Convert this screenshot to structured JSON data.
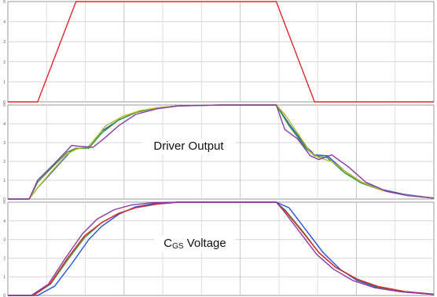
{
  "chart_data": [
    {
      "type": "line",
      "title": "",
      "xlabel": "",
      "ylabel": "",
      "ylim": [
        0,
        5
      ],
      "y_ticks": [
        "0",
        "1",
        "2",
        "3",
        "4",
        "5"
      ],
      "grid": true,
      "series": [
        {
          "color": "#e0262c",
          "points": [
            [
              0,
              0
            ],
            [
              0.7,
              0
            ],
            [
              1.6,
              5
            ],
            [
              6.3,
              5
            ],
            [
              7.2,
              0
            ],
            [
              10,
              0
            ]
          ]
        }
      ]
    },
    {
      "type": "line",
      "title": "Driver Output",
      "xlabel": "",
      "ylabel": "",
      "ylim": [
        0,
        5
      ],
      "y_ticks": [
        "0",
        "1",
        "2",
        "3",
        "4",
        "5"
      ],
      "grid": true,
      "series": [
        {
          "color": "#2a4fd6",
          "points": [
            [
              0,
              0
            ],
            [
              0.5,
              0
            ],
            [
              0.7,
              0.6
            ],
            [
              1.1,
              1.6
            ],
            [
              1.5,
              2.6
            ],
            [
              1.7,
              2.7
            ],
            [
              1.9,
              2.8
            ],
            [
              2.2,
              3.6
            ],
            [
              2.6,
              4.2
            ],
            [
              3.0,
              4.6
            ],
            [
              3.5,
              4.85
            ],
            [
              4.0,
              4.95
            ],
            [
              5,
              5
            ],
            [
              6.3,
              5
            ],
            [
              6.6,
              4.0
            ],
            [
              7.0,
              2.8
            ],
            [
              7.2,
              2.35
            ],
            [
              7.5,
              2.3
            ],
            [
              7.9,
              1.5
            ],
            [
              8.3,
              0.9
            ],
            [
              8.8,
              0.5
            ],
            [
              9.3,
              0.25
            ],
            [
              10,
              0.05
            ]
          ]
        },
        {
          "color": "#2e9a3c",
          "points": [
            [
              0,
              0
            ],
            [
              0.5,
              0
            ],
            [
              0.7,
              0.9
            ],
            [
              1.0,
              1.6
            ],
            [
              1.4,
              2.5
            ],
            [
              1.6,
              2.7
            ],
            [
              1.9,
              2.7
            ],
            [
              2.2,
              3.5
            ],
            [
              2.6,
              4.2
            ],
            [
              3.0,
              4.6
            ],
            [
              3.5,
              4.85
            ],
            [
              4.0,
              4.95
            ],
            [
              5,
              5
            ],
            [
              6.3,
              5
            ],
            [
              6.6,
              3.9
            ],
            [
              7.0,
              2.7
            ],
            [
              7.2,
              2.3
            ],
            [
              7.5,
              2.2
            ],
            [
              7.9,
              1.4
            ],
            [
              8.3,
              0.85
            ],
            [
              8.8,
              0.45
            ],
            [
              9.3,
              0.22
            ],
            [
              10,
              0.05
            ]
          ]
        },
        {
          "color": "#b9b91e",
          "points": [
            [
              0,
              0
            ],
            [
              0.5,
              0
            ],
            [
              0.7,
              0.6
            ],
            [
              1.0,
              1.4
            ],
            [
              1.4,
              2.4
            ],
            [
              1.6,
              2.65
            ],
            [
              1.9,
              2.8
            ],
            [
              2.3,
              3.9
            ],
            [
              2.7,
              4.4
            ],
            [
              3.1,
              4.7
            ],
            [
              3.5,
              4.85
            ],
            [
              4.0,
              4.95
            ],
            [
              5,
              5
            ],
            [
              6.3,
              5
            ],
            [
              6.5,
              4.5
            ],
            [
              6.8,
              3.5
            ],
            [
              7.1,
              2.5
            ],
            [
              7.3,
              2.2
            ],
            [
              7.6,
              2.0
            ],
            [
              7.9,
              1.5
            ],
            [
              8.3,
              0.9
            ],
            [
              8.8,
              0.45
            ],
            [
              9.3,
              0.22
            ],
            [
              10,
              0.05
            ]
          ]
        },
        {
          "color": "#8a3aa6",
          "points": [
            [
              0,
              0
            ],
            [
              0.5,
              0
            ],
            [
              0.7,
              1.0
            ],
            [
              1.1,
              1.9
            ],
            [
              1.5,
              2.85
            ],
            [
              1.7,
              2.8
            ],
            [
              2.0,
              2.75
            ],
            [
              2.3,
              3.3
            ],
            [
              2.6,
              3.9
            ],
            [
              3.0,
              4.5
            ],
            [
              3.5,
              4.8
            ],
            [
              4.0,
              4.95
            ],
            [
              5,
              5
            ],
            [
              6.3,
              5
            ],
            [
              6.5,
              3.7
            ],
            [
              6.8,
              3.2
            ],
            [
              7.1,
              2.3
            ],
            [
              7.3,
              2.1
            ],
            [
              7.6,
              2.35
            ],
            [
              8.0,
              1.7
            ],
            [
              8.4,
              0.9
            ],
            [
              8.9,
              0.4
            ],
            [
              9.4,
              0.18
            ],
            [
              10,
              0.05
            ]
          ]
        }
      ]
    },
    {
      "type": "line",
      "title": "C",
      "title_sub": "GS",
      "title_tail": " Voltage",
      "xlabel": "",
      "ylabel": "",
      "ylim": [
        0,
        5
      ],
      "y_ticks": [
        "0",
        "1",
        "2",
        "3",
        "4",
        "5"
      ],
      "grid": true,
      "series": [
        {
          "color": "#2a4fd6",
          "points": [
            [
              0,
              0
            ],
            [
              0.7,
              0
            ],
            [
              1.1,
              0.5
            ],
            [
              1.5,
              1.7
            ],
            [
              1.9,
              3.0
            ],
            [
              2.2,
              3.7
            ],
            [
              2.6,
              4.35
            ],
            [
              3.0,
              4.75
            ],
            [
              3.5,
              4.95
            ],
            [
              4.0,
              5
            ],
            [
              6.3,
              5
            ],
            [
              6.6,
              4.7
            ],
            [
              7.0,
              3.5
            ],
            [
              7.4,
              2.3
            ],
            [
              7.8,
              1.4
            ],
            [
              8.2,
              0.8
            ],
            [
              8.7,
              0.4
            ],
            [
              9.3,
              0.18
            ],
            [
              10,
              0.05
            ]
          ]
        },
        {
          "color": "#2e9a3c",
          "points": [
            [
              0,
              0
            ],
            [
              0.6,
              0
            ],
            [
              1.0,
              0.6
            ],
            [
              1.4,
              1.9
            ],
            [
              1.8,
              3.1
            ],
            [
              2.2,
              3.9
            ],
            [
              2.6,
              4.4
            ],
            [
              3.0,
              4.7
            ],
            [
              3.5,
              4.9
            ],
            [
              4.0,
              5
            ],
            [
              6.3,
              5
            ],
            [
              6.5,
              4.6
            ],
            [
              6.9,
              3.5
            ],
            [
              7.3,
              2.3
            ],
            [
              7.7,
              1.5
            ],
            [
              8.2,
              0.85
            ],
            [
              8.7,
              0.45
            ],
            [
              9.3,
              0.2
            ],
            [
              10,
              0.06
            ]
          ]
        },
        {
          "color": "#e0262c",
          "points": [
            [
              0,
              0
            ],
            [
              0.6,
              0
            ],
            [
              1.0,
              0.65
            ],
            [
              1.4,
              2.0
            ],
            [
              1.8,
              3.2
            ],
            [
              2.2,
              3.9
            ],
            [
              2.6,
              4.4
            ],
            [
              3.0,
              4.7
            ],
            [
              3.5,
              4.9
            ],
            [
              4.0,
              5
            ],
            [
              6.3,
              5
            ],
            [
              6.5,
              4.55
            ],
            [
              6.9,
              3.45
            ],
            [
              7.3,
              2.3
            ],
            [
              7.7,
              1.5
            ],
            [
              8.2,
              0.88
            ],
            [
              8.7,
              0.48
            ],
            [
              9.3,
              0.22
            ],
            [
              10,
              0.07
            ]
          ]
        },
        {
          "color": "#8a3aa6",
          "points": [
            [
              0,
              0
            ],
            [
              0.55,
              0
            ],
            [
              0.95,
              0.6
            ],
            [
              1.35,
              2.0
            ],
            [
              1.75,
              3.3
            ],
            [
              2.1,
              4.1
            ],
            [
              2.5,
              4.6
            ],
            [
              2.9,
              4.85
            ],
            [
              3.4,
              4.97
            ],
            [
              4.0,
              5
            ],
            [
              6.3,
              5
            ],
            [
              6.45,
              4.6
            ],
            [
              6.85,
              3.4
            ],
            [
              7.25,
              2.2
            ],
            [
              7.65,
              1.4
            ],
            [
              8.1,
              0.8
            ],
            [
              8.6,
              0.42
            ],
            [
              9.2,
              0.2
            ],
            [
              10,
              0.05
            ]
          ]
        }
      ]
    }
  ]
}
